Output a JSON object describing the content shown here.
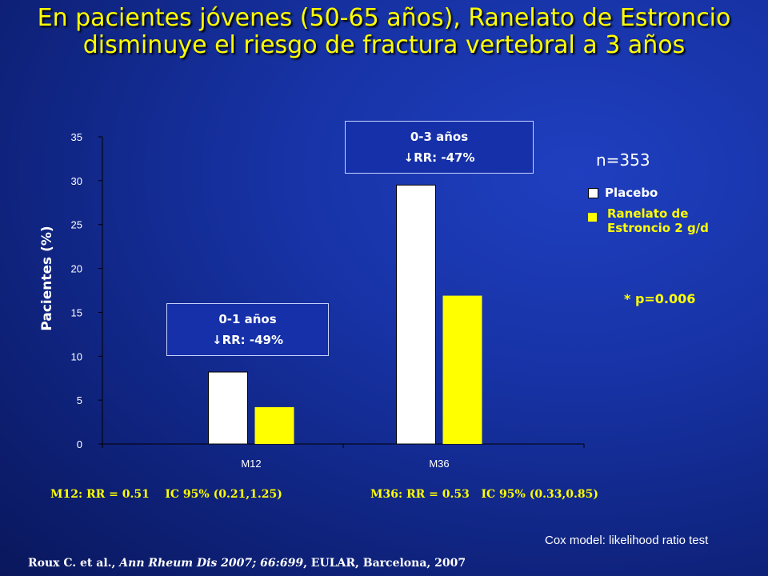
{
  "title": "En pacientes jóvenes (50-65 años), Ranelato de Estroncio  disminuye el riesgo de fractura vertebral a 3 años",
  "colors": {
    "placebo": "#ffffff",
    "ranelato": "#ffff00",
    "accent_text": "#ffff00"
  },
  "chart_data": {
    "type": "bar",
    "categories": [
      "M12",
      "M36"
    ],
    "series": [
      {
        "name": "Placebo",
        "values": [
          8.2,
          29.5
        ]
      },
      {
        "name": "Ranelato de Estroncio 2 g/d",
        "values": [
          4.2,
          16.9
        ]
      }
    ],
    "ylabel": "Pacientes (%)",
    "ylim": [
      0,
      35
    ],
    "yticks": [
      0,
      5,
      10,
      15,
      20,
      25,
      30,
      35
    ],
    "grid": false,
    "legend_position": "right"
  },
  "annotations": {
    "box_m12": {
      "line1": "0-1 años",
      "line2": "RR: -49%"
    },
    "box_m36": {
      "line1": "0-3 años",
      "line2": "RR: -47%"
    },
    "n": "n=353",
    "legend_placebo": "Placebo",
    "legend_ranelato_line1": "Ranelato de",
    "legend_ranelato_line2": "Estroncio 2 g/d",
    "pvalue": "* p=0.006"
  },
  "stats": {
    "m12": "M12: RR = 0.51    IC 95% (0.21,1.25)",
    "m36": "M36: RR = 0.53   IC 95% (0.33,0.85)"
  },
  "footnote": "Cox model: likelihood ratio test",
  "reference": {
    "authors": "Roux C. et al., ",
    "journal": "Ann Rheum Dis 2007; 66:699",
    "event": ", EULAR, Barcelona, 2007"
  }
}
